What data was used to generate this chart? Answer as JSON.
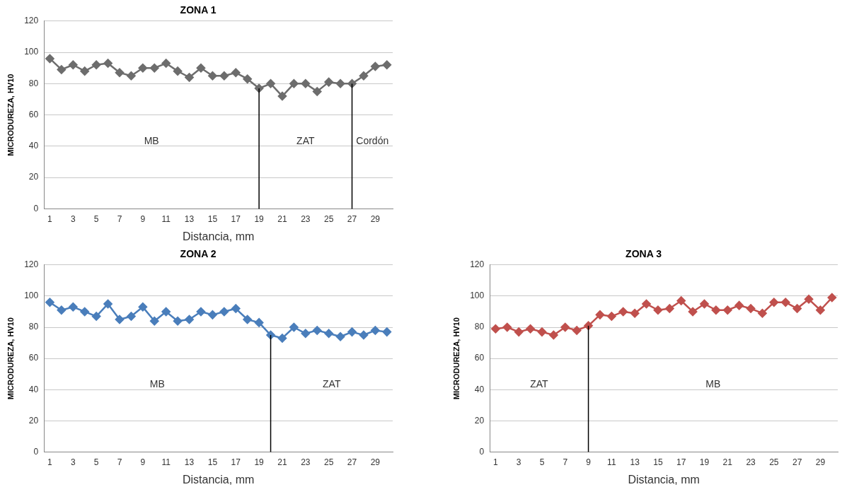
{
  "chart_data": [
    {
      "type": "line",
      "title": "ZONA 1",
      "xlabel": "Distancia, mm",
      "ylabel": "MICRODUREZA, HV10",
      "x": [
        1,
        2,
        3,
        4,
        5,
        6,
        7,
        8,
        9,
        10,
        11,
        12,
        13,
        14,
        15,
        16,
        17,
        18,
        19,
        20,
        21,
        22,
        23,
        24,
        25,
        26,
        27,
        28,
        29,
        30
      ],
      "series": [
        {
          "color": "#6d6d6d",
          "values": [
            96,
            89,
            92,
            88,
            92,
            93,
            87,
            85,
            90,
            90,
            93,
            88,
            84,
            90,
            85,
            85,
            87,
            83,
            77,
            80,
            72,
            80,
            80,
            75,
            81,
            80,
            80,
            85,
            91,
            92
          ]
        }
      ],
      "xlim": [
        0.5,
        30.5
      ],
      "xticks": [
        1,
        3,
        5,
        7,
        9,
        11,
        13,
        15,
        17,
        19,
        21,
        23,
        25,
        27,
        29
      ],
      "ylim": [
        0,
        120
      ],
      "yticks": [
        0,
        20,
        40,
        60,
        80,
        100,
        120
      ],
      "grid": "y",
      "marker": "diamond",
      "line_style": "solid",
      "ref_lines": [
        {
          "axis": "x",
          "value": 19,
          "color": "#000000"
        },
        {
          "axis": "x",
          "value": 27,
          "color": "#000000"
        }
      ],
      "annotations": [
        "MB",
        "ZAT",
        "Cordón"
      ]
    },
    {
      "type": "line",
      "title": "ZONA 2",
      "xlabel": "Distancia, mm",
      "ylabel": "MICRODUREZA, HV10",
      "x": [
        1,
        2,
        3,
        4,
        5,
        6,
        7,
        8,
        9,
        10,
        11,
        12,
        13,
        14,
        15,
        16,
        17,
        18,
        19,
        20,
        21,
        22,
        23,
        24,
        25,
        26,
        27,
        28,
        29,
        30
      ],
      "series": [
        {
          "color": "#4a7ebb",
          "values": [
            96,
            91,
            93,
            90,
            87,
            95,
            85,
            87,
            93,
            84,
            90,
            84,
            85,
            90,
            88,
            90,
            92,
            85,
            83,
            75,
            73,
            80,
            76,
            78,
            76,
            74,
            77,
            75,
            78,
            77
          ]
        }
      ],
      "xlim": [
        0.5,
        30.5
      ],
      "xticks": [
        1,
        3,
        5,
        7,
        9,
        11,
        13,
        15,
        17,
        19,
        21,
        23,
        25,
        27,
        29
      ],
      "ylim": [
        0,
        120
      ],
      "yticks": [
        0,
        20,
        40,
        60,
        80,
        100,
        120
      ],
      "grid": "y",
      "marker": "diamond",
      "line_style": "solid",
      "ref_lines": [
        {
          "axis": "x",
          "value": 20,
          "color": "#000000"
        }
      ],
      "annotations": [
        "MB",
        "ZAT"
      ]
    },
    {
      "type": "line",
      "title": "ZONA 3",
      "xlabel": "Distancia, mm",
      "ylabel": "MICRODUREZA, HV10",
      "x": [
        1,
        2,
        3,
        4,
        5,
        6,
        7,
        8,
        9,
        10,
        11,
        12,
        13,
        14,
        15,
        16,
        17,
        18,
        19,
        20,
        21,
        22,
        23,
        24,
        25,
        26,
        27,
        28,
        29,
        30
      ],
      "series": [
        {
          "color": "#c0504d",
          "values": [
            79,
            80,
            77,
            79,
            77,
            75,
            80,
            78,
            81,
            88,
            87,
            90,
            89,
            95,
            91,
            92,
            97,
            90,
            95,
            91,
            91,
            94,
            92,
            89,
            96,
            96,
            92,
            98,
            91,
            99
          ]
        }
      ],
      "xlim": [
        0.5,
        30.5
      ],
      "xticks": [
        1,
        3,
        5,
        7,
        9,
        11,
        13,
        15,
        17,
        19,
        21,
        23,
        25,
        27,
        29
      ],
      "ylim": [
        0,
        120
      ],
      "yticks": [
        0,
        20,
        40,
        60,
        80,
        100,
        120
      ],
      "grid": "y",
      "marker": "diamond",
      "line_style": "solid",
      "ref_lines": [
        {
          "axis": "x",
          "value": 9,
          "color": "#000000"
        }
      ],
      "annotations": [
        "ZAT",
        "MB"
      ]
    }
  ]
}
